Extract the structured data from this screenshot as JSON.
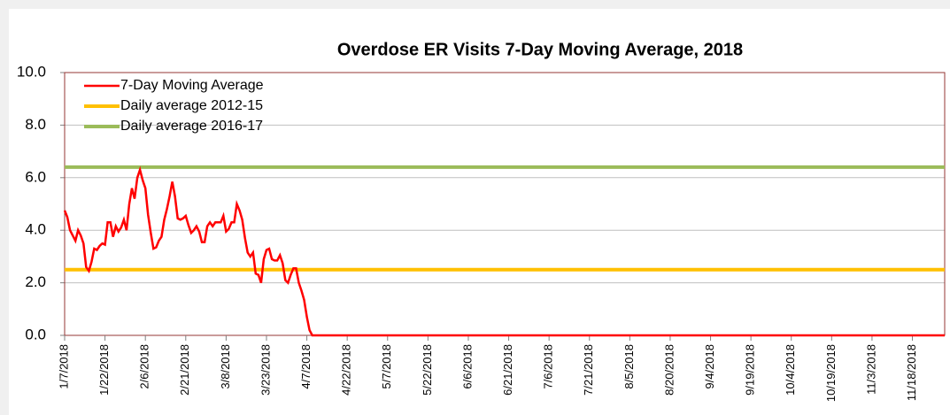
{
  "chart_data": {
    "type": "line",
    "title": "Overdose ER Visits 7-Day Moving Average, 2018",
    "xlim": [
      "1/7/2018",
      "11/30/2018"
    ],
    "xticks": [
      "1/7/2018",
      "1/22/2018",
      "2/6/2018",
      "2/21/2018",
      "3/8/2018",
      "3/23/2018",
      "4/7/2018",
      "4/22/2018",
      "5/7/2018",
      "5/22/2018",
      "6/6/2018",
      "6/21/2018",
      "7/6/2018",
      "7/21/2018",
      "8/5/2018",
      "8/20/2018",
      "9/4/2018",
      "9/19/2018",
      "10/4/2018",
      "10/19/2018",
      "11/3/2018",
      "11/18/2018"
    ],
    "ylim": [
      0,
      10
    ],
    "yticks": [
      {
        "value": 0,
        "label": "0.0"
      },
      {
        "value": 2,
        "label": "2.0"
      },
      {
        "value": 4,
        "label": "4.0"
      },
      {
        "value": 6,
        "label": "6.0"
      },
      {
        "value": 8,
        "label": "8.0"
      },
      {
        "value": 10,
        "label": "10.0"
      }
    ],
    "grid": true,
    "legend": "upper left",
    "series": [
      {
        "name": "7-Day Moving Average",
        "color": "#ff0000",
        "x": [
          "1/7/2018",
          "1/8/2018",
          "1/9/2018",
          "1/10/2018",
          "1/11/2018",
          "1/12/2018",
          "1/13/2018",
          "1/14/2018",
          "1/15/2018",
          "1/16/2018",
          "1/17/2018",
          "1/18/2018",
          "1/19/2018",
          "1/20/2018",
          "1/21/2018",
          "1/22/2018",
          "1/23/2018",
          "1/24/2018",
          "1/25/2018",
          "1/26/2018",
          "1/27/2018",
          "1/28/2018",
          "1/29/2018",
          "1/30/2018",
          "1/31/2018",
          "2/1/2018",
          "2/2/2018",
          "2/3/2018",
          "2/4/2018",
          "2/5/2018",
          "2/6/2018",
          "2/7/2018",
          "2/8/2018",
          "2/9/2018",
          "2/10/2018",
          "2/11/2018",
          "2/12/2018",
          "2/13/2018",
          "2/14/2018",
          "2/15/2018",
          "2/16/2018",
          "2/17/2018",
          "2/18/2018",
          "2/19/2018",
          "2/20/2018",
          "2/21/2018",
          "2/22/2018",
          "2/23/2018",
          "2/24/2018",
          "2/25/2018",
          "2/26/2018",
          "2/27/2018",
          "2/28/2018",
          "3/1/2018",
          "3/2/2018",
          "3/3/2018",
          "3/4/2018",
          "3/5/2018",
          "3/6/2018",
          "3/7/2018",
          "3/8/2018",
          "3/9/2018",
          "3/10/2018",
          "3/11/2018",
          "3/12/2018",
          "3/13/2018",
          "3/14/2018",
          "3/15/2018",
          "3/16/2018",
          "3/17/2018",
          "3/18/2018",
          "3/19/2018",
          "3/20/2018",
          "3/21/2018",
          "3/22/2018",
          "3/23/2018",
          "3/24/2018",
          "3/25/2018",
          "3/26/2018",
          "3/27/2018",
          "3/28/2018",
          "3/29/2018",
          "3/30/2018",
          "3/31/2018",
          "4/1/2018",
          "4/2/2018",
          "4/3/2018",
          "4/4/2018",
          "4/5/2018",
          "4/6/2018",
          "4/7/2018",
          "4/8/2018",
          "4/9/2018",
          "11/30/2018"
        ],
        "values": [
          4.75,
          4.5,
          4.0,
          3.8,
          3.6,
          4.0,
          3.8,
          3.5,
          2.6,
          2.45,
          2.8,
          3.3,
          3.25,
          3.4,
          3.5,
          3.45,
          4.3,
          4.3,
          3.75,
          4.15,
          3.95,
          4.1,
          4.4,
          4.0,
          5.0,
          5.6,
          5.2,
          6.0,
          6.3,
          5.9,
          5.6,
          4.6,
          3.9,
          3.3,
          3.35,
          3.6,
          3.75,
          4.4,
          4.8,
          5.3,
          5.85,
          5.3,
          4.45,
          4.4,
          4.45,
          4.55,
          4.2,
          3.9,
          4.0,
          4.15,
          3.95,
          3.55,
          3.55,
          4.15,
          4.3,
          4.15,
          4.3,
          4.3,
          4.3,
          4.55,
          3.95,
          4.05,
          4.3,
          4.3,
          5.0,
          4.75,
          4.4,
          3.7,
          3.15,
          3.0,
          3.15,
          2.35,
          2.3,
          2.0,
          2.9,
          3.25,
          3.3,
          2.9,
          2.85,
          2.85,
          3.05,
          2.75,
          2.1,
          2.0,
          2.3,
          2.55,
          2.55,
          2.0,
          1.7,
          1.35,
          0.7,
          0.2,
          0,
          0
        ]
      },
      {
        "name": "Daily average 2012-15",
        "color": "#ffc000",
        "x": [
          "1/7/2018",
          "11/30/2018"
        ],
        "values": [
          2.5,
          2.5
        ]
      },
      {
        "name": "Daily average 2016-17",
        "color": "#9bbb59",
        "x": [
          "1/7/2018",
          "11/30/2018"
        ],
        "values": [
          6.4,
          6.4
        ]
      }
    ]
  }
}
